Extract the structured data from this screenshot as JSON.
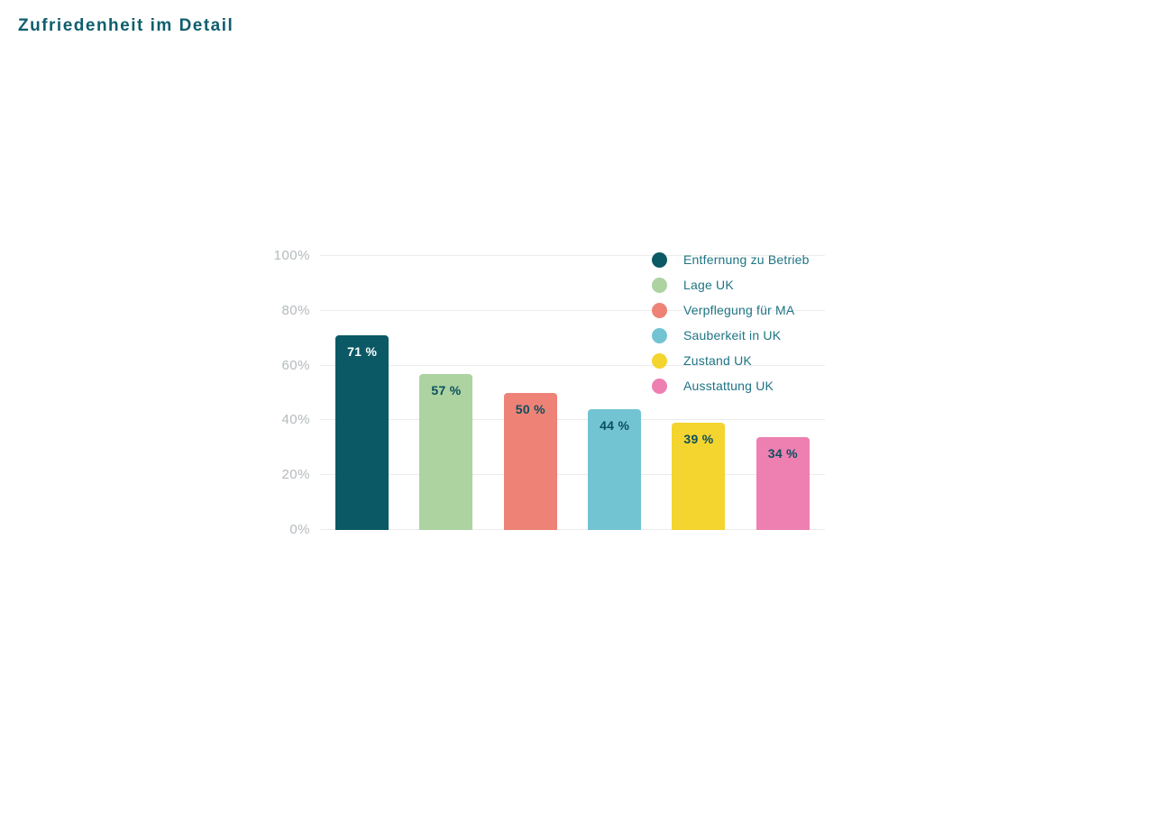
{
  "page": {
    "title": "Zufriedenheit im Detail",
    "title_color": "#0e5e6d",
    "background_color": "#ffffff"
  },
  "chart_data": {
    "type": "bar",
    "title": "Zufriedenheit im Detail",
    "categories": [
      "Entfernung zu Betrieb",
      "Lage UK",
      "Verpflegung für MA",
      "Sauberkeit in UK",
      "Zustand UK",
      "Ausstattung UK"
    ],
    "values": [
      71,
      57,
      50,
      44,
      39,
      34
    ],
    "value_labels": [
      "71 %",
      "57 %",
      "50 %",
      "44 %",
      "39 %",
      "34 %"
    ],
    "bar_colors": [
      "#0b5965",
      "#acd3a0",
      "#ee8276",
      "#72c4d3",
      "#f4d42e",
      "#ee7fb1"
    ],
    "value_label_colors": [
      "#ffffff",
      "#0b4f5e",
      "#0b4f5e",
      "#0b4f5e",
      "#0b4f5e",
      "#0b4f5e"
    ],
    "xlabel": "",
    "ylabel": "",
    "ylim": [
      0,
      100
    ],
    "ytick_values": [
      100,
      80,
      60,
      40,
      20,
      0
    ],
    "ytick_labels": [
      "100%",
      "80%",
      "60%",
      "40%",
      "20%",
      "0%"
    ],
    "grid": true,
    "gridline_color": "#ececec",
    "tick_label_color": "#b4babd",
    "legend_position": "right",
    "legend_text_color": "#1e7484",
    "legend": [
      "Entfernung zu Betrieb",
      "Lage UK",
      "Verpflegung für MA",
      "Sauberkeit in UK",
      "Zustand UK",
      "Ausstattung UK"
    ]
  }
}
